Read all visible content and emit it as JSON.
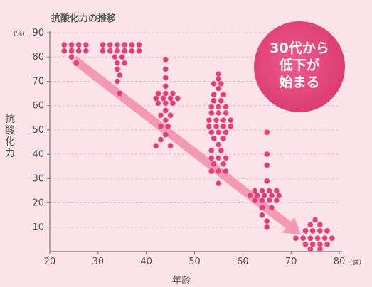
{
  "chart_data": {
    "type": "scatter",
    "title": "抗酸化力の推移",
    "xlabel": "年齢",
    "ylabel": "抗酸化力",
    "x_unit": "(歳)",
    "y_unit": "(%)",
    "xlim": [
      20,
      80
    ],
    "ylim": [
      0,
      90
    ],
    "xticks": [
      20,
      30,
      40,
      50,
      60,
      70,
      80
    ],
    "yticks": [
      10,
      20,
      30,
      40,
      50,
      60,
      70,
      80,
      90
    ],
    "annotation": [
      "30代から",
      "低下が",
      "始まる"
    ],
    "trend": {
      "from": [
        25,
        79
      ],
      "to": [
        72,
        7
      ]
    },
    "points": [
      [
        23,
        85
      ],
      [
        24.5,
        85
      ],
      [
        26,
        85
      ],
      [
        27.5,
        85
      ],
      [
        23,
        82.5
      ],
      [
        24.5,
        82.5
      ],
      [
        26,
        82.5
      ],
      [
        27.5,
        82.5
      ],
      [
        24.5,
        80
      ],
      [
        25.5,
        77.5
      ],
      [
        31,
        85
      ],
      [
        32.5,
        85
      ],
      [
        34,
        85
      ],
      [
        35.5,
        85
      ],
      [
        37,
        85
      ],
      [
        38.5,
        85
      ],
      [
        31,
        82.5
      ],
      [
        32.5,
        82.5
      ],
      [
        34,
        82.5
      ],
      [
        35.5,
        82.5
      ],
      [
        37,
        82.5
      ],
      [
        38.5,
        82.5
      ],
      [
        33.5,
        80
      ],
      [
        35,
        80
      ],
      [
        34,
        77.5
      ],
      [
        35.5,
        77.5
      ],
      [
        34,
        75
      ],
      [
        34.5,
        72.5
      ],
      [
        34,
        70
      ],
      [
        34.5,
        65
      ],
      [
        44,
        79
      ],
      [
        44,
        75
      ],
      [
        44,
        71.5
      ],
      [
        44,
        68
      ],
      [
        42.5,
        65
      ],
      [
        44,
        65
      ],
      [
        45.5,
        65
      ],
      [
        42,
        63
      ],
      [
        43.5,
        63
      ],
      [
        45,
        63
      ],
      [
        46.5,
        63
      ],
      [
        42.5,
        61
      ],
      [
        44,
        61
      ],
      [
        45.5,
        61
      ],
      [
        44,
        58
      ],
      [
        43,
        56
      ],
      [
        45,
        56
      ],
      [
        44,
        54
      ],
      [
        43,
        51.5
      ],
      [
        44.5,
        51.5
      ],
      [
        44,
        48
      ],
      [
        43,
        46
      ],
      [
        42,
        43.5
      ],
      [
        45,
        43.5
      ],
      [
        55,
        73
      ],
      [
        55,
        71
      ],
      [
        54,
        69
      ],
      [
        55.5,
        69
      ],
      [
        55,
        67
      ],
      [
        54,
        64.5
      ],
      [
        56,
        64.5
      ],
      [
        54,
        62
      ],
      [
        55.5,
        62
      ],
      [
        53.5,
        59.5
      ],
      [
        55,
        59.5
      ],
      [
        56.5,
        59.5
      ],
      [
        53.5,
        57
      ],
      [
        55,
        57
      ],
      [
        56.5,
        57
      ],
      [
        53,
        54
      ],
      [
        54.5,
        54
      ],
      [
        56,
        54
      ],
      [
        57.5,
        54
      ],
      [
        53,
        51.5
      ],
      [
        54.5,
        51.5
      ],
      [
        56,
        51.5
      ],
      [
        57.5,
        51.5
      ],
      [
        53.5,
        49
      ],
      [
        55,
        49
      ],
      [
        56.5,
        49
      ],
      [
        54,
        46.5
      ],
      [
        56,
        46.5
      ],
      [
        55,
        44
      ],
      [
        53.5,
        41.5
      ],
      [
        55.5,
        41.5
      ],
      [
        53.5,
        38.5
      ],
      [
        55,
        38.5
      ],
      [
        56.5,
        38.5
      ],
      [
        54,
        36
      ],
      [
        56,
        36
      ],
      [
        55,
        33
      ],
      [
        53.5,
        33
      ],
      [
        56.5,
        33
      ],
      [
        55,
        28
      ],
      [
        65,
        49
      ],
      [
        65,
        40
      ],
      [
        65,
        35.5
      ],
      [
        65,
        29
      ],
      [
        62.5,
        25
      ],
      [
        64,
        25
      ],
      [
        65.5,
        25
      ],
      [
        67,
        25
      ],
      [
        61.5,
        23
      ],
      [
        63,
        23
      ],
      [
        64.5,
        23
      ],
      [
        66,
        23
      ],
      [
        67.5,
        23
      ],
      [
        62.5,
        21
      ],
      [
        64,
        21
      ],
      [
        65.5,
        21
      ],
      [
        67,
        21
      ],
      [
        64,
        18
      ],
      [
        66,
        18
      ],
      [
        64,
        15
      ],
      [
        65,
        12.5
      ],
      [
        65,
        10
      ],
      [
        75,
        13
      ],
      [
        74,
        11
      ],
      [
        76,
        11
      ],
      [
        73,
        8.5
      ],
      [
        74.5,
        8.5
      ],
      [
        76,
        8.5
      ],
      [
        77.5,
        8.5
      ],
      [
        71,
        5.5
      ],
      [
        72.5,
        5.5
      ],
      [
        74,
        5.5
      ],
      [
        75.5,
        5.5
      ],
      [
        77,
        5.5
      ],
      [
        78.5,
        5.5
      ],
      [
        73,
        3
      ],
      [
        74.5,
        3
      ],
      [
        76,
        3
      ],
      [
        77.5,
        3
      ],
      [
        74,
        1
      ],
      [
        76,
        1
      ]
    ]
  },
  "colors": {
    "background": "#fce3ea",
    "dot": "#e23f79",
    "trend": "#f18caa",
    "badge": "#e8457b",
    "axis": "#777777",
    "grid": "#f6b2c6"
  }
}
